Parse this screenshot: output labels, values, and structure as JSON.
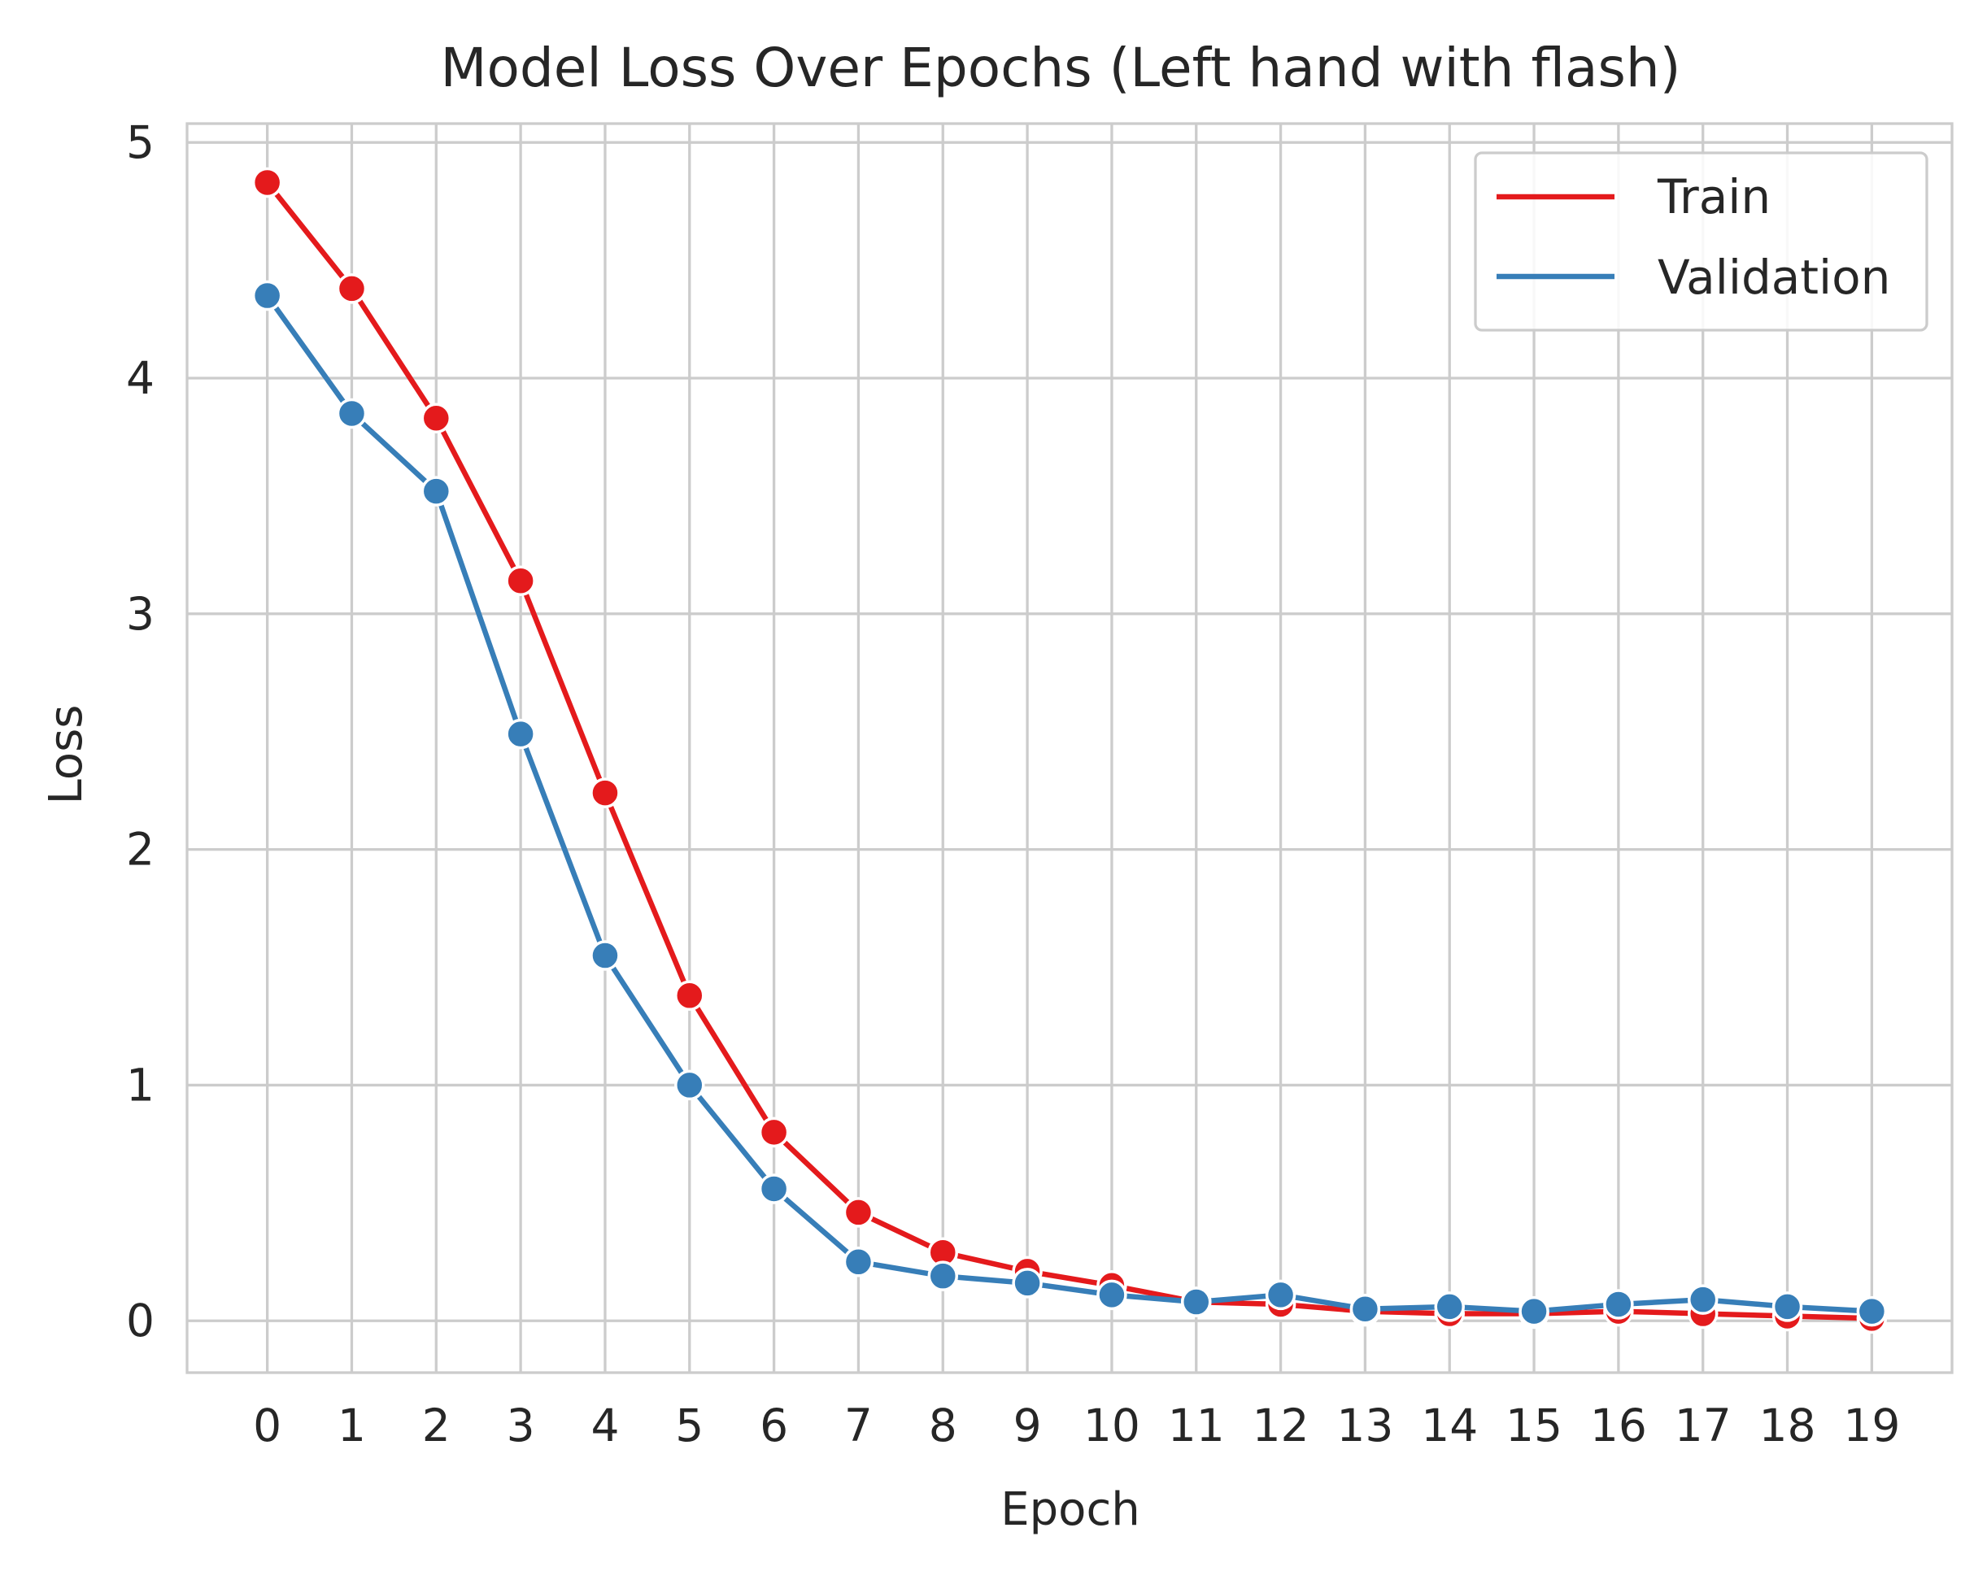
{
  "chart_data": {
    "type": "line",
    "title": "Model Loss Over Epochs (Left hand with flash)",
    "xlabel": "Epoch",
    "ylabel": "Loss",
    "x": [
      0,
      1,
      2,
      3,
      4,
      5,
      6,
      7,
      8,
      9,
      10,
      11,
      12,
      13,
      14,
      15,
      16,
      17,
      18,
      19
    ],
    "xlim": [
      -0.95,
      19.95
    ],
    "ylim": [
      -0.22,
      5.08
    ],
    "yticks": [
      0,
      1,
      2,
      3,
      4,
      5
    ],
    "grid": true,
    "legend_position": "top-right",
    "series": [
      {
        "name": "Train",
        "color": "#e41a1c",
        "values": [
          4.83,
          4.38,
          3.83,
          3.14,
          2.24,
          1.38,
          0.8,
          0.46,
          0.29,
          0.21,
          0.15,
          0.08,
          0.07,
          0.04,
          0.03,
          0.03,
          0.04,
          0.03,
          0.02,
          0.01
        ]
      },
      {
        "name": "Validation",
        "color": "#377eb8",
        "values": [
          4.35,
          3.85,
          3.52,
          2.49,
          1.55,
          1.0,
          0.56,
          0.25,
          0.19,
          0.16,
          0.11,
          0.08,
          0.11,
          0.05,
          0.06,
          0.04,
          0.07,
          0.09,
          0.06,
          0.04
        ]
      }
    ]
  }
}
